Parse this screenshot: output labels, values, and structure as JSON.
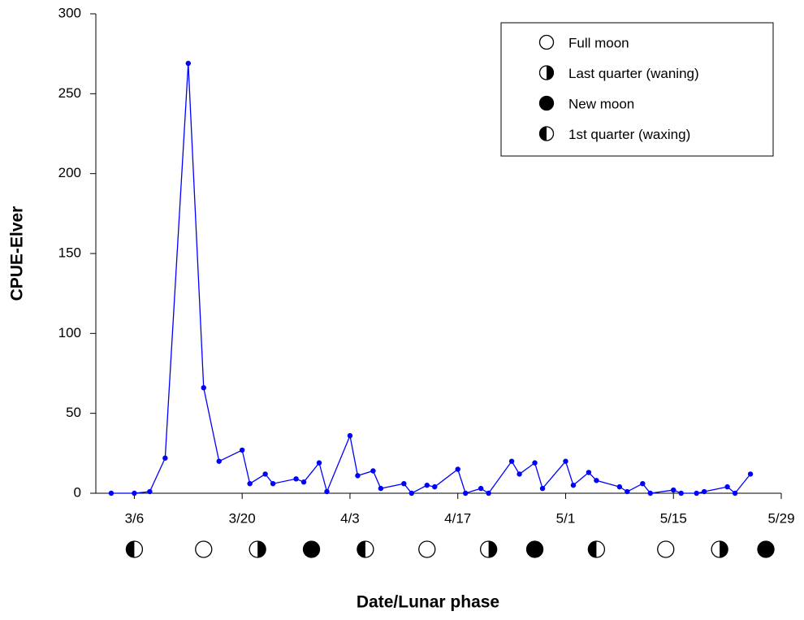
{
  "chart_data": {
    "type": "line",
    "y_label": "CPUE-Elver",
    "x_label": "Date/Lunar phase",
    "x": [
      "3/3",
      "3/6",
      "3/8",
      "3/10",
      "3/13",
      "3/15",
      "3/17",
      "3/20",
      "3/21",
      "3/23",
      "3/24",
      "3/27",
      "3/28",
      "3/30",
      "3/31",
      "4/3",
      "4/4",
      "4/6",
      "4/7",
      "4/10",
      "4/11",
      "4/13",
      "4/14",
      "4/17",
      "4/18",
      "4/20",
      "4/21",
      "4/24",
      "4/25",
      "4/27",
      "4/28",
      "5/1",
      "5/2",
      "5/4",
      "5/5",
      "5/8",
      "5/9",
      "5/11",
      "5/12",
      "5/15",
      "5/16",
      "5/18",
      "5/19",
      "5/22",
      "5/23",
      "5/25"
    ],
    "series": [
      {
        "color": "#0000ff",
        "values": [
          0,
          0,
          1,
          22,
          269,
          66,
          20,
          27,
          6,
          12,
          6,
          9,
          7,
          19,
          1,
          36,
          11,
          14,
          3,
          6,
          0,
          5,
          4,
          15,
          0,
          3,
          0,
          20,
          12,
          19,
          3,
          20,
          5,
          13,
          8,
          4,
          1,
          6,
          0,
          2,
          0,
          0,
          1,
          4,
          0,
          12
        ]
      }
    ],
    "xlim": [
      "3/1",
      "5/29"
    ],
    "xticks": [
      "3/6",
      "3/20",
      "4/3",
      "4/17",
      "5/1",
      "5/15",
      "5/29"
    ],
    "ylim": [
      0,
      300
    ],
    "yticks": [
      0,
      50,
      100,
      150,
      200,
      250,
      300
    ],
    "legend_position": "upper right",
    "lunar_phases": [
      {
        "name": "Full moon",
        "symbol": "open",
        "dates": [
          "3/15",
          "4/13",
          "5/14"
        ]
      },
      {
        "name": "Last quarter (waning)",
        "symbol": "right-half",
        "dates": [
          "3/22",
          "4/21",
          "5/21"
        ]
      },
      {
        "name": "New moon",
        "symbol": "filled",
        "dates": [
          "3/29",
          "4/27",
          "5/27"
        ]
      },
      {
        "name": "1st quarter (waxing)",
        "symbol": "left-half",
        "dates": [
          "3/6",
          "4/5",
          "5/5"
        ]
      }
    ]
  }
}
